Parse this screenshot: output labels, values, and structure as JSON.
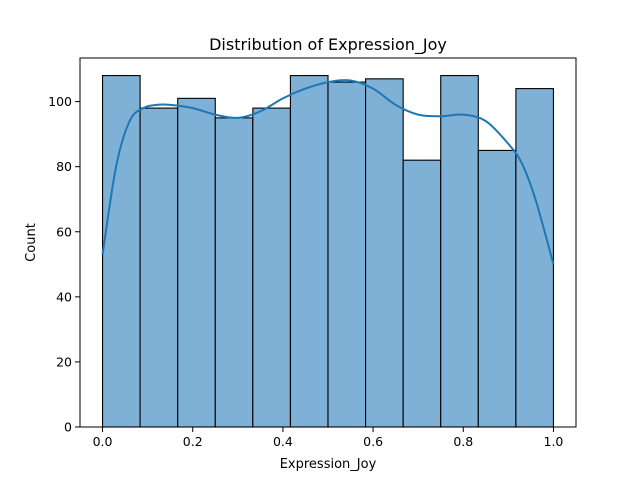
{
  "chart_data": {
    "type": "bar",
    "title": "Distribution of Expression_Joy",
    "xlabel": "Expression_Joy",
    "ylabel": "Count",
    "bin_edges": [
      0.0,
      0.0833,
      0.1667,
      0.25,
      0.3333,
      0.4167,
      0.5,
      0.5833,
      0.6667,
      0.75,
      0.8333,
      0.9167,
      1.0
    ],
    "values": [
      108,
      98,
      101,
      95,
      98,
      108,
      106,
      107,
      82,
      108,
      85,
      104
    ],
    "xlim": [
      -0.05,
      1.05
    ],
    "ylim": [
      0,
      113.4
    ],
    "xticks": [
      0.0,
      0.2,
      0.4,
      0.6,
      0.8,
      1.0
    ],
    "xtick_labels": [
      "0.0",
      "0.2",
      "0.4",
      "0.6",
      "0.8",
      "1.0"
    ],
    "yticks": [
      0,
      20,
      40,
      60,
      80,
      100
    ],
    "ytick_labels": [
      "0",
      "20",
      "40",
      "60",
      "80",
      "100"
    ],
    "bar_color": "#7fb0d6",
    "kde": {
      "color": "#1f77b4",
      "x": [
        0.0,
        0.03,
        0.06,
        0.09,
        0.12,
        0.15,
        0.2,
        0.25,
        0.3,
        0.35,
        0.4,
        0.45,
        0.5,
        0.55,
        0.6,
        0.65,
        0.7,
        0.75,
        0.8,
        0.85,
        0.9,
        0.93,
        0.96,
        1.0
      ],
      "y": [
        53,
        80,
        94,
        98,
        99,
        99,
        98,
        96,
        95,
        97,
        101,
        104,
        106,
        106.5,
        104,
        99,
        96,
        95.5,
        96,
        94,
        87,
        81,
        70,
        50
      ]
    },
    "grid": false,
    "legend": "none"
  }
}
